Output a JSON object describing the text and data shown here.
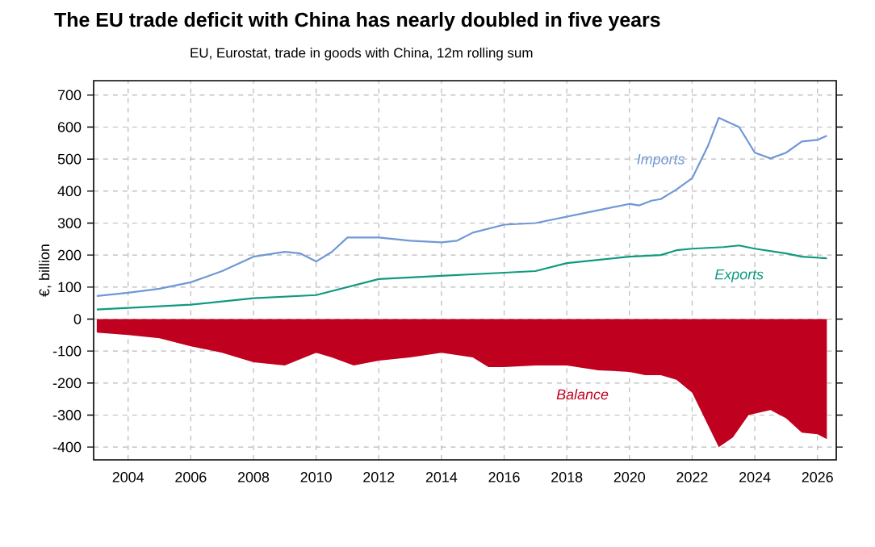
{
  "chart_data": {
    "type": "line",
    "title": "The EU trade deficit with China has nearly doubled in five years",
    "subtitle": "EU, Eurostat, trade in goods with China, 12m rolling sum",
    "ylabel": "€, billion",
    "xlim": [
      2002.9,
      2026.6
    ],
    "ylim": [
      -440,
      745
    ],
    "xticks": [
      2004,
      2006,
      2008,
      2010,
      2012,
      2014,
      2016,
      2018,
      2020,
      2022,
      2024,
      2026
    ],
    "yticks": [
      -400,
      -300,
      -200,
      -100,
      0,
      100,
      200,
      300,
      400,
      500,
      600,
      700
    ],
    "grid": true,
    "legend": false,
    "marker": "none",
    "line_style": "solid",
    "series": [
      {
        "name": "Imports",
        "color": "#6f98d6",
        "x": [
          2003,
          2004,
          2005,
          2006,
          2007,
          2008,
          2009,
          2009.5,
          2010,
          2010.5,
          2011,
          2012,
          2013,
          2014,
          2014.5,
          2015,
          2016,
          2017,
          2018,
          2019,
          2020,
          2020.3,
          2020.7,
          2021,
          2021.5,
          2022,
          2022.5,
          2022.85,
          2023.5,
          2024,
          2024.5,
          2025,
          2025.5,
          2026,
          2026.3
        ],
        "values": [
          72,
          82,
          95,
          115,
          150,
          195,
          210,
          205,
          180,
          210,
          255,
          255,
          245,
          240,
          245,
          270,
          295,
          300,
          320,
          340,
          360,
          355,
          370,
          375,
          405,
          440,
          540,
          629,
          600,
          520,
          502,
          520,
          555,
          560,
          573
        ]
      },
      {
        "name": "Exports",
        "color": "#0f9a80",
        "x": [
          2003,
          2006,
          2008,
          2010,
          2012,
          2013,
          2014,
          2016,
          2017,
          2018,
          2019,
          2020,
          2021,
          2021.5,
          2022,
          2023,
          2023.5,
          2024,
          2025,
          2025.5,
          2026.3
        ],
        "values": [
          30,
          45,
          65,
          75,
          125,
          130,
          135,
          145,
          150,
          175,
          185,
          195,
          200,
          215,
          220,
          225,
          230,
          220,
          205,
          195,
          190
        ]
      },
      {
        "name": "Balance",
        "type": "area",
        "color": "#c0001f",
        "x": [
          2003,
          2004,
          2005,
          2006,
          2007,
          2008,
          2009,
          2010,
          2010.5,
          2011.2,
          2012,
          2013,
          2014,
          2015,
          2015.5,
          2016,
          2017,
          2018,
          2019,
          2020,
          2020.5,
          2021,
          2021.5,
          2022,
          2022.5,
          2022.85,
          2023.3,
          2023.8,
          2024.5,
          2025,
          2025.5,
          2026,
          2026.3
        ],
        "values": [
          -42,
          -50,
          -60,
          -85,
          -105,
          -135,
          -145,
          -105,
          -120,
          -145,
          -130,
          -120,
          -105,
          -120,
          -150,
          -150,
          -145,
          -145,
          -160,
          -165,
          -175,
          -175,
          -190,
          -230,
          -330,
          -400,
          -370,
          -300,
          -284,
          -310,
          -355,
          -360,
          -375
        ]
      }
    ]
  }
}
